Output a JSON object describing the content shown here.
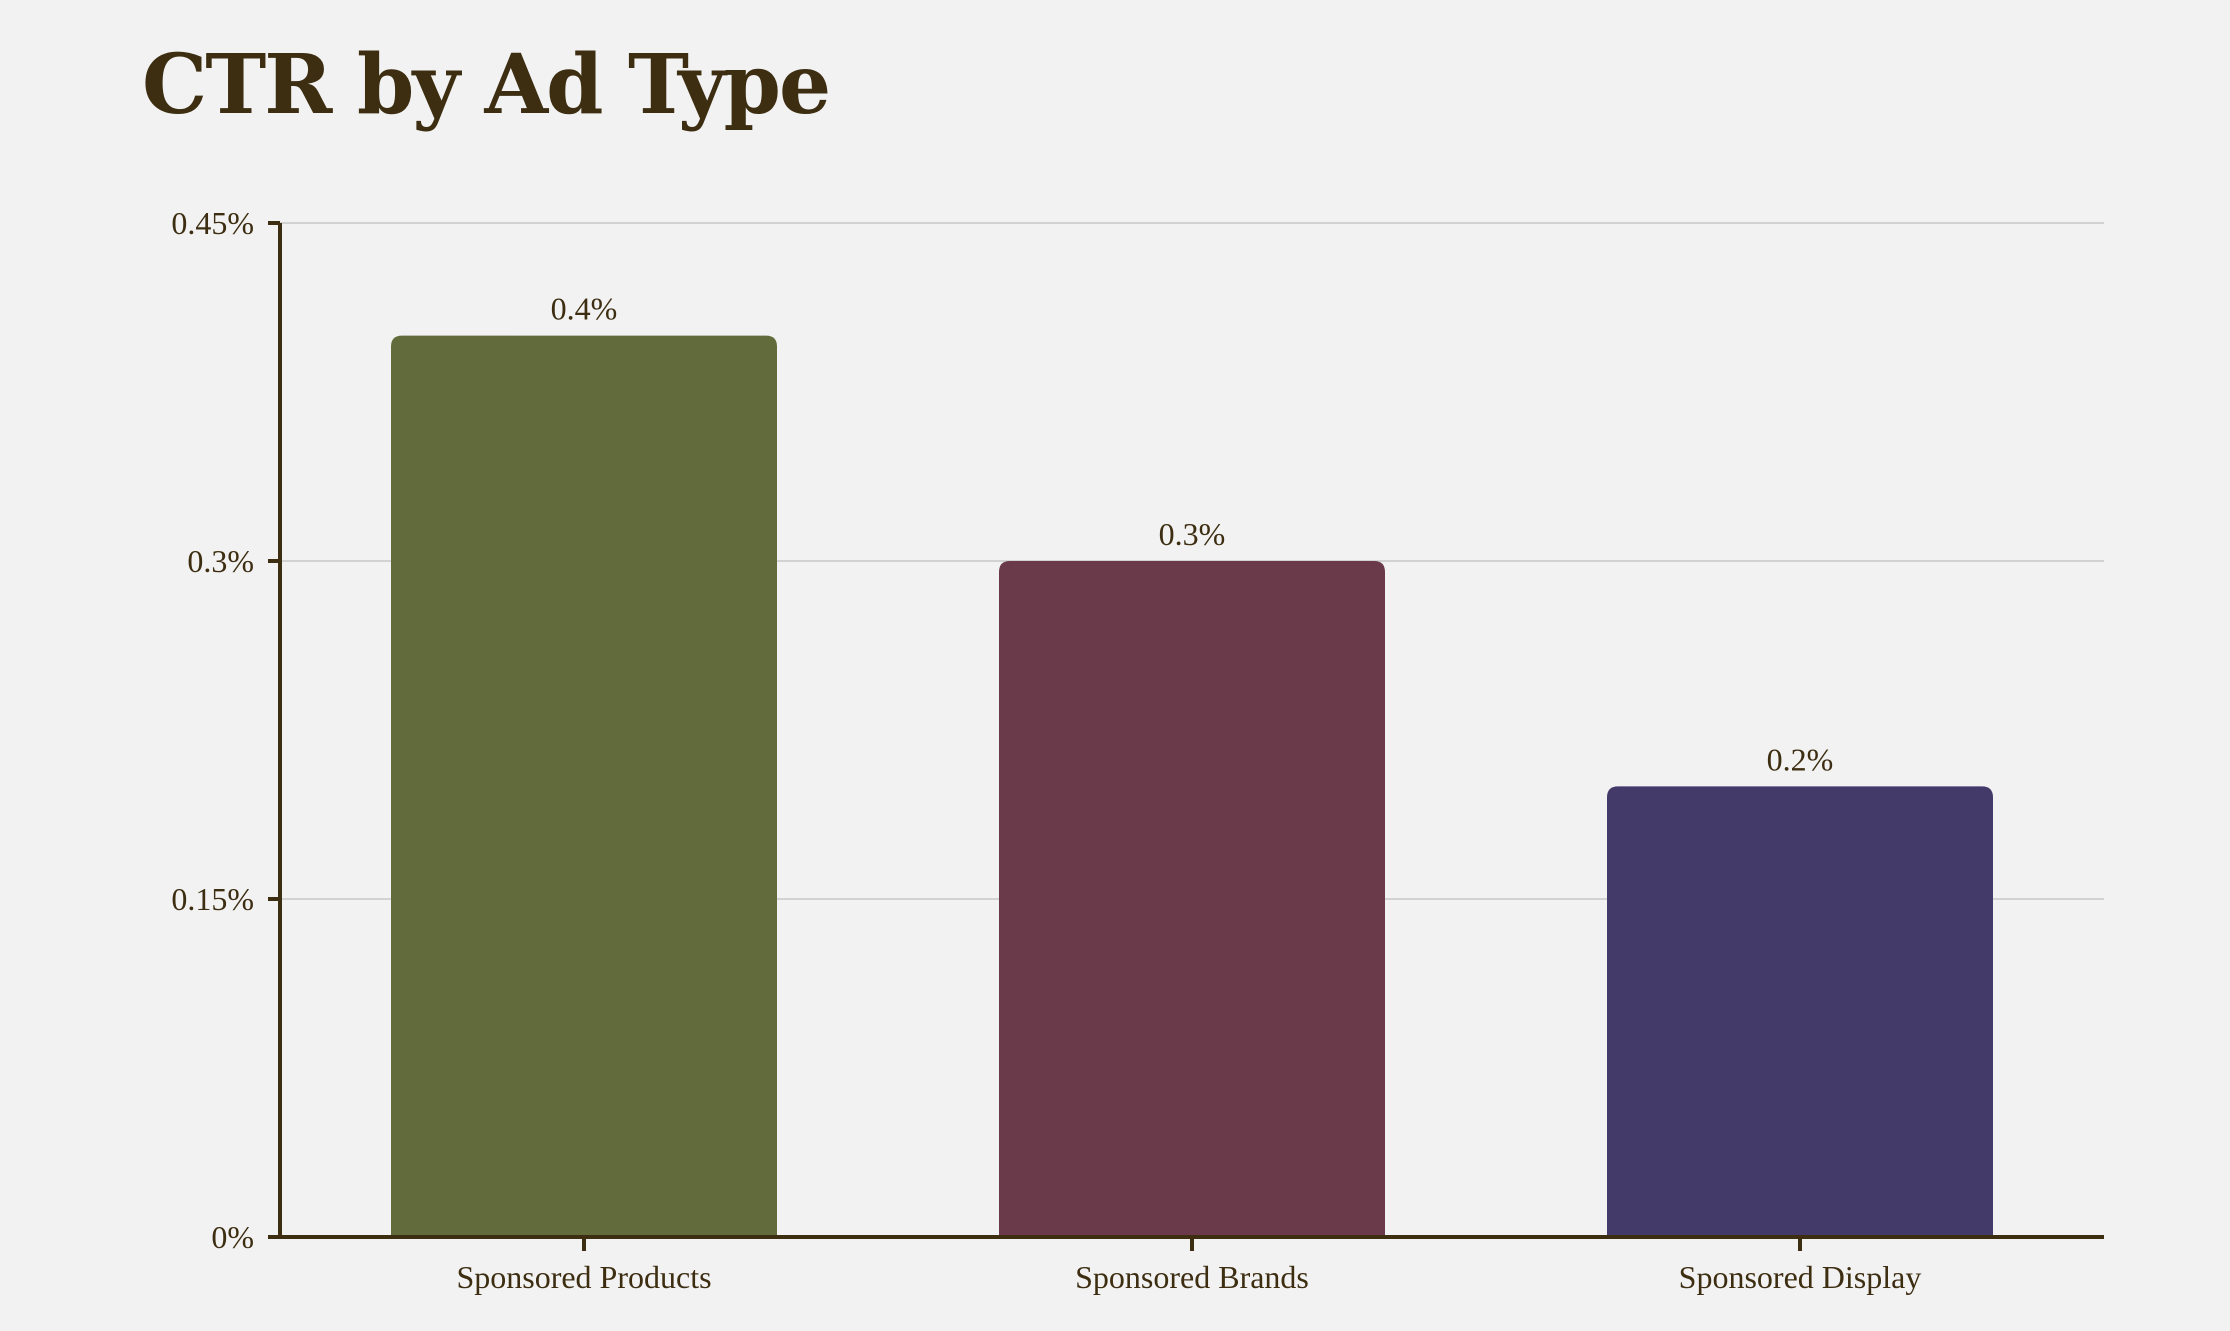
{
  "chart_data": {
    "type": "bar",
    "title": "CTR by Ad Type",
    "xlabel": "",
    "ylabel": "",
    "categories": [
      "Sponsored Products",
      "Sponsored Brands",
      "Sponsored Display"
    ],
    "values": [
      0.4,
      0.3,
      0.2
    ],
    "data_labels": [
      "0.4%",
      "0.3%",
      "0.2%"
    ],
    "ylim": [
      0,
      0.45
    ],
    "yticks": [
      0,
      0.15,
      0.3,
      0.45
    ],
    "ytick_labels": [
      "0%",
      "0.15%",
      "0.3%",
      "0.45%"
    ],
    "colors": [
      "#626b3b",
      "#6a3a4a",
      "#443a69"
    ],
    "grid": true,
    "legend": "none"
  },
  "colors": {
    "background": "#f2f2f2",
    "axis": "#3d2e12",
    "text": "#3d2e12",
    "gridline": "#c8c8c8"
  }
}
